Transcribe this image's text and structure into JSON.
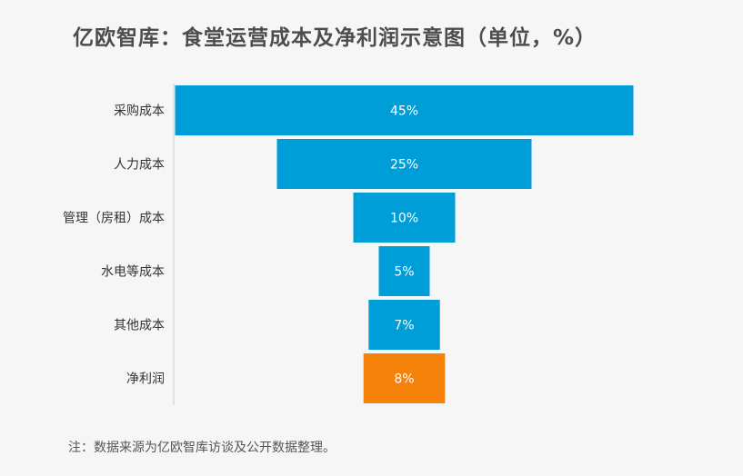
{
  "title": "亿欧智库：食堂运营成本及净利润示意图（单位，%）",
  "note": "注：数据来源为亿欧智库访谈及公开数据整理。",
  "colors": {
    "cost": "#009ed8",
    "profit": "#f5820a",
    "axis": "#cccccc",
    "category_text": "#333333",
    "value_text": "#ffffff"
  },
  "chart_data": {
    "type": "bar",
    "orientation": "horizontal-centered",
    "categories": [
      "采购成本",
      "人力成本",
      "管理（房租）成本",
      "水电等成本",
      "其他成本",
      "净利润"
    ],
    "values": [
      45,
      25,
      10,
      5,
      7,
      8
    ],
    "value_labels": [
      "45%",
      "25%",
      "10%",
      "5%",
      "7%",
      "8%"
    ],
    "highlight_index": 5,
    "legend": "none",
    "grid": false
  }
}
